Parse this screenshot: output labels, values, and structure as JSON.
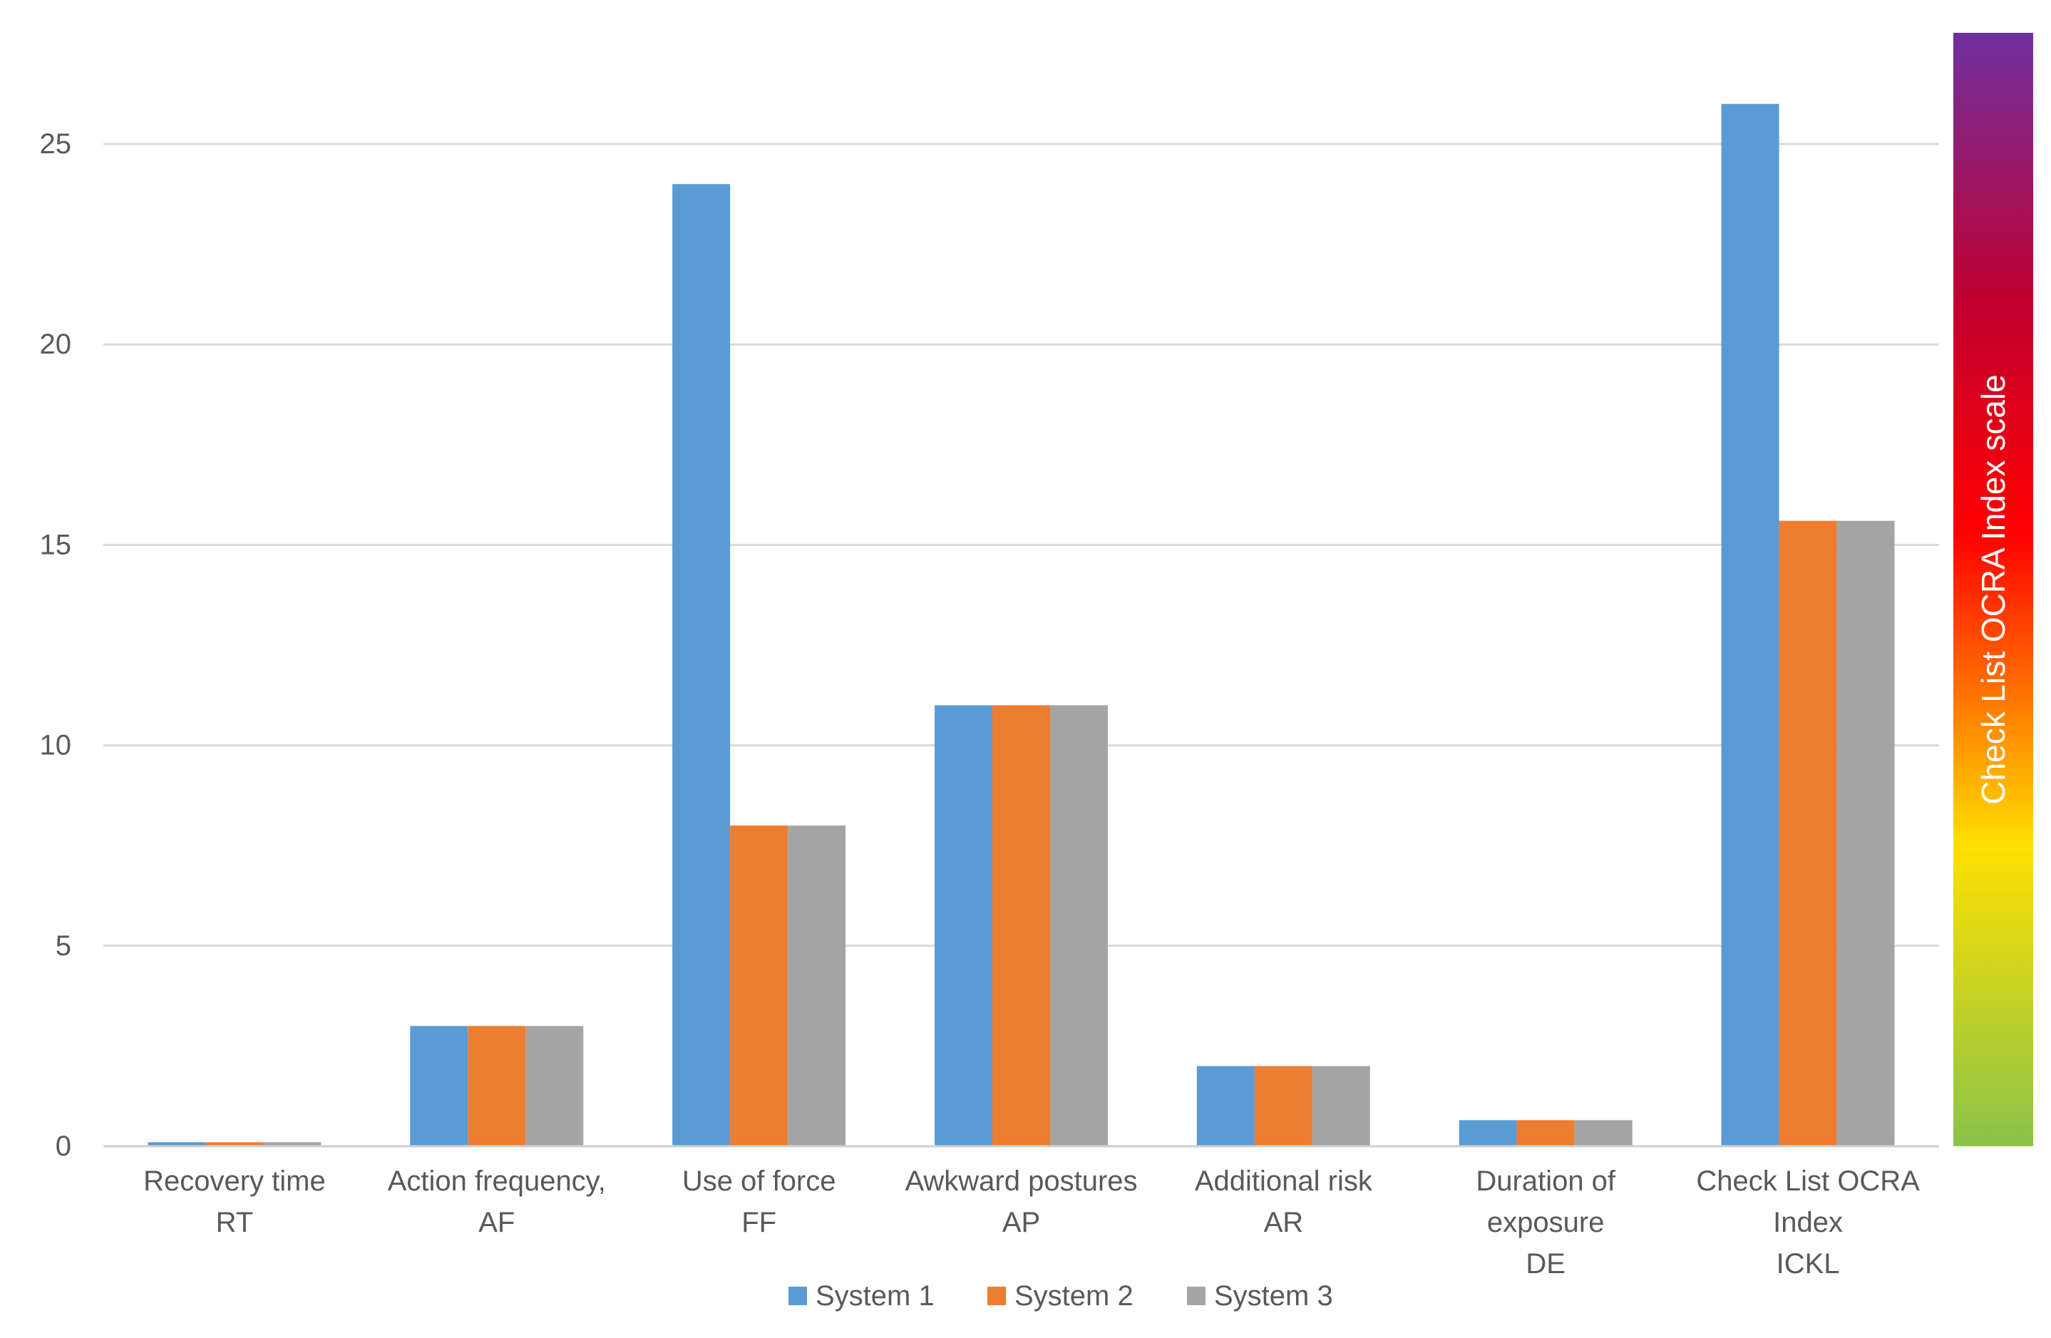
{
  "chart_data": {
    "type": "bar",
    "categories": [
      [
        "Recovery time",
        "RT"
      ],
      [
        "Action frequency,",
        "AF"
      ],
      [
        "Use of force",
        "FF"
      ],
      [
        "Awkward postures",
        "AP"
      ],
      [
        "Additional risk",
        "AR"
      ],
      [
        "Duration of",
        "exposure",
        "DE"
      ],
      [
        "Check List OCRA",
        "Index",
        "ICKL"
      ]
    ],
    "series": [
      {
        "name": "System 1",
        "color": "#5B9BD5",
        "values": [
          0.1,
          3,
          24,
          11,
          2,
          0.65,
          26
        ]
      },
      {
        "name": "System 2",
        "color": "#ED7D31",
        "values": [
          0.1,
          3,
          8,
          11,
          2,
          0.65,
          15.6
        ]
      },
      {
        "name": "System 3",
        "color": "#A5A5A5",
        "values": [
          0.1,
          3,
          8,
          11,
          2,
          0.65,
          15.6
        ]
      }
    ],
    "ylim": [
      0,
      28
    ],
    "yticks": [
      0,
      5,
      10,
      15,
      20,
      25
    ],
    "grid": true,
    "legend_position": "bottom",
    "colorbar": {
      "label": "Check List OCRA Index scale",
      "colors": [
        "#8BC34A",
        "#FFE000",
        "#FF0000",
        "#C00030",
        "#7030A0"
      ]
    }
  }
}
